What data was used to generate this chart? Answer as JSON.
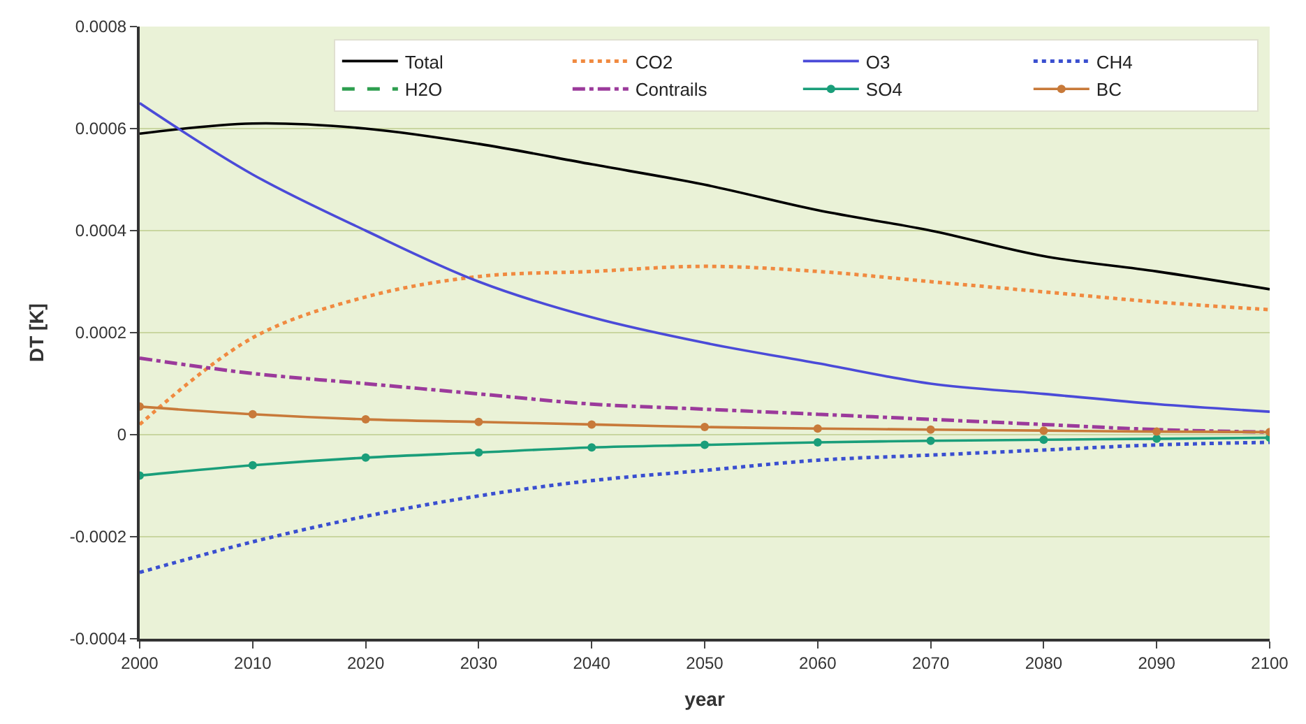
{
  "chart_data": {
    "type": "line",
    "xlabel": "year",
    "ylabel": "DT [K]",
    "x": [
      2000,
      2010,
      2020,
      2030,
      2040,
      2050,
      2060,
      2070,
      2080,
      2090,
      2100
    ],
    "xlim": [
      2000,
      2100
    ],
    "xticks": [
      2000,
      2010,
      2020,
      2030,
      2040,
      2050,
      2060,
      2070,
      2080,
      2090,
      2100
    ],
    "ylim": [
      -0.0004,
      0.0008
    ],
    "yticks": [
      -0.0004,
      -0.0002,
      0,
      0.0002,
      0.0004,
      0.0006,
      0.0008
    ],
    "grid": "y",
    "legend": "top right",
    "series": [
      {
        "name": "Total",
        "color": "#000000",
        "line_style": "solid",
        "values": [
          0.00059,
          0.00061,
          0.0006,
          0.00057,
          0.00053,
          0.00049,
          0.00044,
          0.0004,
          0.00035,
          0.00032,
          0.000285
        ]
      },
      {
        "name": "CO2",
        "color": "#f08a40",
        "line_style": "dotted",
        "values": [
          2e-05,
          0.00019,
          0.00027,
          0.00031,
          0.00032,
          0.00033,
          0.00032,
          0.0003,
          0.00028,
          0.00026,
          0.000245
        ]
      },
      {
        "name": "O3",
        "color": "#4b4bd8",
        "line_style": "solid",
        "values": [
          0.00065,
          0.00051,
          0.0004,
          0.0003,
          0.00023,
          0.00018,
          0.00014,
          0.0001,
          8e-05,
          6e-05,
          4.5e-05
        ]
      },
      {
        "name": "CH4",
        "color": "#3a4fd0",
        "line_style": "dotted",
        "values": [
          -0.00027,
          -0.00021,
          -0.00016,
          -0.00012,
          -9e-05,
          -7e-05,
          -5e-05,
          -4e-05,
          -3e-05,
          -2e-05,
          -1.5e-05
        ]
      },
      {
        "name": "H2O",
        "color": "#2e9e4f",
        "line_style": "dashed",
        "values": [
          null,
          null,
          null,
          null,
          null,
          null,
          null,
          null,
          null,
          null,
          null
        ]
      },
      {
        "name": "Contrails",
        "color": "#9b3a9b",
        "line_style": "dashdot",
        "values": [
          0.00015,
          0.00012,
          0.0001,
          8e-05,
          6e-05,
          5e-05,
          4e-05,
          3e-05,
          2e-05,
          1e-05,
          5e-06
        ]
      },
      {
        "name": "SO4",
        "color": "#1a9e7a",
        "line_style": "solid",
        "marker": "circle",
        "values": [
          -8e-05,
          -6e-05,
          -4.5e-05,
          -3.5e-05,
          -2.5e-05,
          -2e-05,
          -1.5e-05,
          -1.2e-05,
          -1e-05,
          -8e-06,
          -6e-06
        ]
      },
      {
        "name": "BC",
        "color": "#c87a3a",
        "line_style": "solid",
        "marker": "circle",
        "values": [
          5.5e-05,
          4e-05,
          3e-05,
          2.5e-05,
          2e-05,
          1.5e-05,
          1.2e-05,
          1e-05,
          8e-06,
          6e-06,
          5e-06
        ]
      }
    ]
  }
}
